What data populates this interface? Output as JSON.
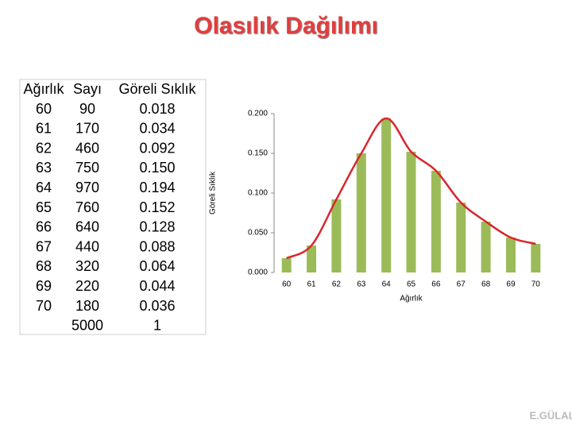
{
  "title": "Olasılık Dağılımı",
  "table": {
    "header": [
      "Ağırlık",
      "Sayı",
      "Göreli Sıklık"
    ],
    "rows": [
      [
        "60",
        "90",
        "0.018"
      ],
      [
        "61",
        "170",
        "0.034"
      ],
      [
        "62",
        "460",
        "0.092"
      ],
      [
        "63",
        "750",
        "0.150"
      ],
      [
        "64",
        "970",
        "0.194"
      ],
      [
        "65",
        "760",
        "0.152"
      ],
      [
        "66",
        "640",
        "0.128"
      ],
      [
        "67",
        "440",
        "0.088"
      ],
      [
        "68",
        "320",
        "0.064"
      ],
      [
        "69",
        "220",
        "0.044"
      ],
      [
        "70",
        "180",
        "0.036"
      ]
    ],
    "total": [
      "",
      "5000",
      "1"
    ]
  },
  "chart_data": {
    "type": "bar",
    "x_label": "Ağırlık",
    "y_label": "Göreli Sıklık",
    "categories": [
      "60",
      "61",
      "62",
      "63",
      "64",
      "65",
      "66",
      "67",
      "68",
      "69",
      "70"
    ],
    "values": [
      0.018,
      0.034,
      0.092,
      0.15,
      0.194,
      0.152,
      0.128,
      0.088,
      0.064,
      0.044,
      0.036
    ],
    "color": "#9bbb59",
    "curve_color": "#d9262b",
    "ylim": [
      0,
      0.2
    ],
    "yticks": [
      {
        "value": 0,
        "label": "0.000"
      },
      {
        "value": 0.05,
        "label": "0.050"
      },
      {
        "value": 0.1,
        "label": "0.100"
      },
      {
        "value": 0.15,
        "label": "0.150"
      },
      {
        "value": 0.2,
        "label": "0.200"
      }
    ]
  },
  "footer": "E.GÜLAL"
}
